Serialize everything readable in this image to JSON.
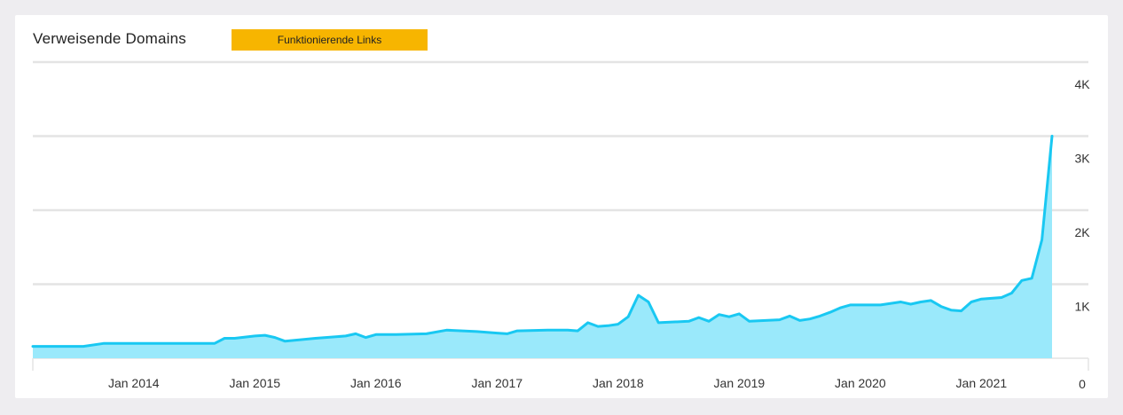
{
  "widget": {
    "title": "Verweisende Domains",
    "badge_label": "Funktionierende Links"
  },
  "colors": {
    "line": "#19c8f2",
    "fill": "#9ae9fb",
    "grid": "#e4e4e4",
    "badge": "#f7b500"
  },
  "chart_data": {
    "type": "area",
    "title": "Verweisende Domains",
    "legend": [
      "Funktionierende Links"
    ],
    "xlabel": "",
    "ylabel": "",
    "x_ticks": [
      "Jan 2014",
      "Jan 2015",
      "Jan 2016",
      "Jan 2017",
      "Jan 2018",
      "Jan 2019",
      "Jan 2020",
      "Jan 2021"
    ],
    "y_ticks": [
      "0",
      "1K",
      "2K",
      "3K",
      "4K"
    ],
    "y_axis_side": "right",
    "ylim": [
      0,
      4000
    ],
    "xlim": [
      "2013-03-01",
      "2021-08-01"
    ],
    "grid": true,
    "series": [
      {
        "name": "Funktionierende Links",
        "points": [
          [
            "2013-03-01",
            160
          ],
          [
            "2013-08-01",
            160
          ],
          [
            "2013-10-01",
            200
          ],
          [
            "2014-06-01",
            200
          ],
          [
            "2014-09-01",
            200
          ],
          [
            "2014-10-01",
            270
          ],
          [
            "2014-11-01",
            270
          ],
          [
            "2015-01-01",
            300
          ],
          [
            "2015-02-01",
            310
          ],
          [
            "2015-03-01",
            280
          ],
          [
            "2015-04-01",
            230
          ],
          [
            "2015-07-01",
            270
          ],
          [
            "2015-10-01",
            300
          ],
          [
            "2015-11-01",
            330
          ],
          [
            "2015-12-01",
            280
          ],
          [
            "2016-01-01",
            320
          ],
          [
            "2016-03-01",
            320
          ],
          [
            "2016-06-01",
            330
          ],
          [
            "2016-08-01",
            380
          ],
          [
            "2016-11-01",
            360
          ],
          [
            "2017-01-01",
            340
          ],
          [
            "2017-02-01",
            330
          ],
          [
            "2017-03-01",
            370
          ],
          [
            "2017-06-01",
            380
          ],
          [
            "2017-08-01",
            380
          ],
          [
            "2017-09-01",
            370
          ],
          [
            "2017-10-01",
            480
          ],
          [
            "2017-11-01",
            430
          ],
          [
            "2017-12-01",
            440
          ],
          [
            "2018-01-01",
            460
          ],
          [
            "2018-02-01",
            560
          ],
          [
            "2018-03-01",
            850
          ],
          [
            "2018-04-01",
            760
          ],
          [
            "2018-05-01",
            480
          ],
          [
            "2018-08-01",
            500
          ],
          [
            "2018-09-01",
            550
          ],
          [
            "2018-10-01",
            500
          ],
          [
            "2018-11-01",
            590
          ],
          [
            "2018-12-01",
            560
          ],
          [
            "2019-01-01",
            600
          ],
          [
            "2019-02-01",
            500
          ],
          [
            "2019-05-01",
            520
          ],
          [
            "2019-06-01",
            570
          ],
          [
            "2019-07-01",
            510
          ],
          [
            "2019-08-01",
            530
          ],
          [
            "2019-09-01",
            570
          ],
          [
            "2019-10-01",
            620
          ],
          [
            "2019-11-01",
            680
          ],
          [
            "2019-12-01",
            720
          ],
          [
            "2020-03-01",
            720
          ],
          [
            "2020-05-01",
            760
          ],
          [
            "2020-06-01",
            730
          ],
          [
            "2020-07-01",
            760
          ],
          [
            "2020-08-01",
            780
          ],
          [
            "2020-09-01",
            700
          ],
          [
            "2020-10-01",
            650
          ],
          [
            "2020-11-01",
            640
          ],
          [
            "2020-12-01",
            760
          ],
          [
            "2021-01-01",
            800
          ],
          [
            "2021-02-01",
            810
          ],
          [
            "2021-03-01",
            820
          ],
          [
            "2021-04-01",
            880
          ],
          [
            "2021-05-01",
            1050
          ],
          [
            "2021-06-01",
            1080
          ],
          [
            "2021-07-01",
            1600
          ],
          [
            "2021-08-01",
            3000
          ]
        ]
      }
    ]
  }
}
